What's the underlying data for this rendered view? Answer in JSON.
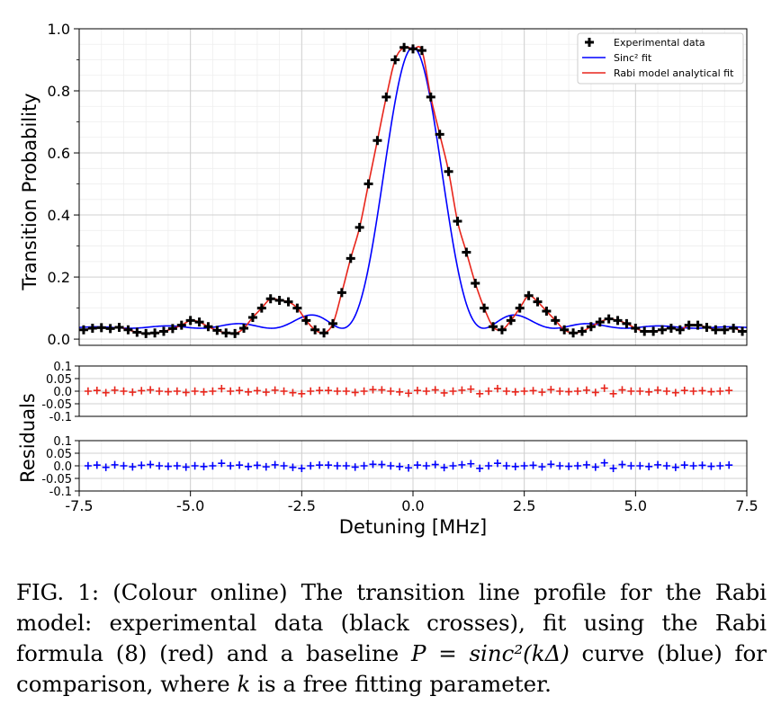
{
  "chart_data": [
    {
      "type": "scatter",
      "ylabel": "Transition Probability",
      "xlim": [
        -7.5,
        7.5
      ],
      "ylim": [
        -0.02,
        1.0
      ],
      "yticks": [
        "0.0",
        "0.2",
        "0.4",
        "0.6",
        "0.8",
        "1.0"
      ],
      "grid": true,
      "legend": {
        "position": "top-right",
        "entries": [
          "Experimental data",
          "Sinc² fit",
          "Rabi model analytical fit"
        ]
      },
      "series": [
        {
          "name": "Experimental data",
          "marker": "cross",
          "color": "#000000",
          "x": [
            -7.4,
            -7.2,
            -7.0,
            -6.8,
            -6.6,
            -6.4,
            -6.2,
            -6.0,
            -5.8,
            -5.6,
            -5.4,
            -5.2,
            -5.0,
            -4.8,
            -4.6,
            -4.4,
            -4.2,
            -4.0,
            -3.8,
            -3.6,
            -3.4,
            -3.2,
            -3.0,
            -2.8,
            -2.6,
            -2.4,
            -2.2,
            -2.0,
            -1.8,
            -1.6,
            -1.4,
            -1.2,
            -1.0,
            -0.8,
            -0.6,
            -0.4,
            -0.2,
            0.0,
            0.2,
            0.4,
            0.6,
            0.8,
            1.0,
            1.2,
            1.4,
            1.6,
            1.8,
            2.0,
            2.2,
            2.4,
            2.6,
            2.8,
            3.0,
            3.2,
            3.4,
            3.6,
            3.8,
            4.0,
            4.2,
            4.4,
            4.6,
            4.8,
            5.0,
            5.2,
            5.4,
            5.6,
            5.8,
            6.0,
            6.2,
            6.4,
            6.6,
            6.8,
            7.0,
            7.2,
            7.4
          ],
          "y": [
            0.03,
            0.035,
            0.037,
            0.034,
            0.038,
            0.03,
            0.022,
            0.018,
            0.02,
            0.025,
            0.034,
            0.045,
            0.06,
            0.055,
            0.04,
            0.028,
            0.02,
            0.018,
            0.035,
            0.07,
            0.1,
            0.13,
            0.125,
            0.12,
            0.1,
            0.06,
            0.03,
            0.02,
            0.05,
            0.15,
            0.26,
            0.36,
            0.5,
            0.64,
            0.78,
            0.9,
            0.94,
            0.935,
            0.93,
            0.78,
            0.66,
            0.54,
            0.38,
            0.28,
            0.18,
            0.1,
            0.04,
            0.03,
            0.06,
            0.1,
            0.14,
            0.12,
            0.09,
            0.06,
            0.03,
            0.02,
            0.025,
            0.04,
            0.055,
            0.065,
            0.06,
            0.05,
            0.035,
            0.025,
            0.025,
            0.03,
            0.035,
            0.03,
            0.045,
            0.045,
            0.038,
            0.03,
            0.03,
            0.035,
            0.025
          ]
        },
        {
          "name": "Sinc² fit",
          "color": "#0000ff"
        },
        {
          "name": "Rabi model analytical fit",
          "color": "#e8251b"
        }
      ]
    },
    {
      "type": "scatter",
      "ylabel": "Residuals",
      "ylim": [
        -0.1,
        0.1
      ],
      "yticks": [
        "0.1",
        "0.05",
        "0.0",
        "-0.05",
        "-0.1"
      ],
      "color": "#e8251b",
      "x_start": -7.3,
      "x_step": 0.2,
      "values": [
        0.0,
        0.003,
        -0.006,
        0.004,
        0.0,
        -0.004,
        0.002,
        0.005,
        0.0,
        -0.002,
        0.0,
        -0.005,
        0.0,
        -0.003,
        0.0,
        0.01,
        0.0,
        0.003,
        -0.003,
        0.002,
        -0.004,
        0.004,
        0.0,
        -0.006,
        -0.01,
        0.0,
        0.003,
        0.003,
        0.0,
        0.0,
        -0.005,
        0.0,
        0.006,
        0.005,
        0.0,
        -0.003,
        -0.008,
        0.003,
        0.0,
        0.005,
        -0.007,
        0.0,
        0.004,
        0.008,
        -0.01,
        0.0,
        0.01,
        0.0,
        -0.003,
        0.0,
        0.002,
        -0.004,
        0.006,
        0.0,
        -0.002,
        0.0,
        0.004,
        -0.005,
        0.012,
        -0.01,
        0.005,
        0.0,
        0.0,
        -0.003,
        0.004,
        0.0,
        -0.006,
        0.003,
        0.0,
        0.002,
        -0.002,
        0.0,
        0.003
      ],
      "err": 0.015
    },
    {
      "type": "scatter",
      "ylabel": "Residuals",
      "xlabel": "Detuning [MHz]",
      "ylim": [
        -0.1,
        0.1
      ],
      "xticks": [
        "-7.5",
        "-5.0",
        "-2.5",
        "0.0",
        "2.5",
        "5.0",
        "7.5"
      ],
      "yticks": [
        "0.1",
        "0.05",
        "0.0",
        "-0.05",
        "-0.1"
      ],
      "color": "#0000ff",
      "x_start": -7.3,
      "x_step": 0.2,
      "values": [
        0.0,
        0.003,
        -0.006,
        0.004,
        0.0,
        -0.004,
        0.002,
        0.005,
        0.0,
        -0.002,
        0.0,
        -0.005,
        0.0,
        -0.003,
        0.0,
        0.01,
        0.0,
        0.003,
        -0.003,
        0.002,
        -0.004,
        0.004,
        0.0,
        -0.006,
        -0.01,
        0.0,
        0.003,
        0.003,
        0.0,
        0.0,
        -0.005,
        0.0,
        0.006,
        0.005,
        0.0,
        -0.003,
        -0.008,
        0.003,
        0.0,
        0.005,
        -0.007,
        0.0,
        0.004,
        0.008,
        -0.01,
        0.0,
        0.01,
        0.0,
        -0.003,
        0.0,
        0.002,
        -0.004,
        0.006,
        0.0,
        -0.002,
        0.0,
        0.004,
        -0.005,
        0.012,
        -0.01,
        0.005,
        0.0,
        0.0,
        -0.003,
        0.004,
        0.0,
        -0.006,
        0.003,
        0.0,
        0.002,
        -0.002,
        0.0,
        0.003
      ],
      "err": 0.015
    }
  ],
  "caption": {
    "label": "FIG. 1:",
    "text1": "(Colour online) The transition line profile for the Rabi model: experimental data (black crosses), fit using the Rabi formula (8) (red) and a baseline ",
    "math1": "P = sinc²(kΔ)",
    "text2": " curve (blue) for comparison, where ",
    "math2": "k",
    "text3": " is a free fitting parameter."
  }
}
